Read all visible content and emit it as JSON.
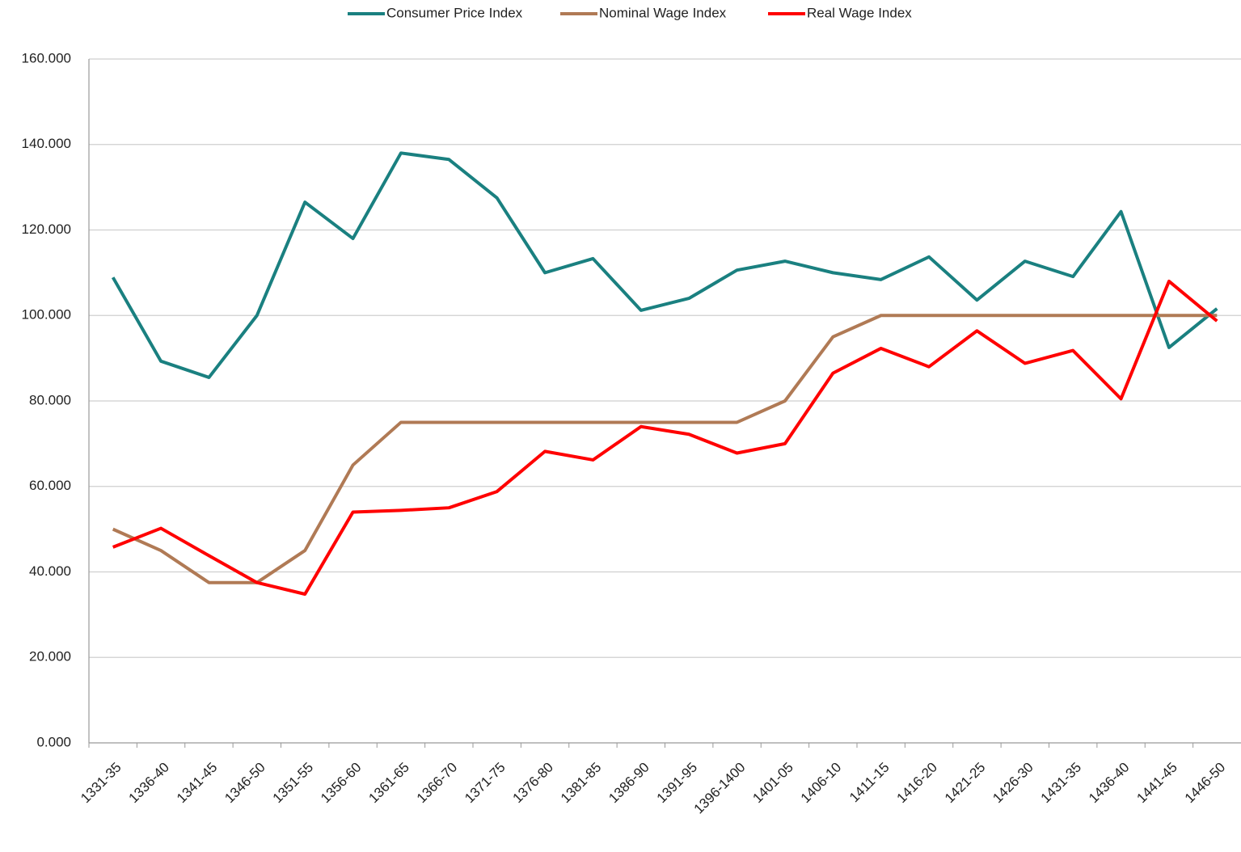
{
  "chart_data": {
    "type": "line",
    "categories": [
      "1331-35",
      "1336-40",
      "1341-45",
      "1346-50",
      "1351-55",
      "1356-60",
      "1361-65",
      "1366-70",
      "1371-75",
      "1376-80",
      "1381-85",
      "1386-90",
      "1391-95",
      "1396-1400",
      "1401-05",
      "1406-10",
      "1411-15",
      "1416-20",
      "1421-25",
      "1426-30",
      "1431-35",
      "1436-40",
      "1441-45",
      "1446-50"
    ],
    "series": [
      {
        "name": "Consumer Price Index",
        "color": "#1a8080",
        "values": [
          108.9,
          89.3,
          85.5,
          100,
          126.5,
          118,
          138,
          136.5,
          127.5,
          110,
          113.3,
          101.2,
          104,
          110.6,
          112.7,
          110,
          108.4,
          113.7,
          103.6,
          112.7,
          109.1,
          124.3,
          92.5,
          101.6
        ]
      },
      {
        "name": "Nominal Wage Index",
        "color": "#b07a55",
        "values": [
          50,
          45,
          37.5,
          37.5,
          45,
          65,
          75,
          75,
          75,
          75,
          75,
          75,
          75,
          75,
          80,
          95,
          100,
          100,
          100,
          100,
          100,
          100,
          100,
          100
        ]
      },
      {
        "name": "Real Wage Index",
        "color": "#ff0000",
        "values": [
          45.8,
          50.2,
          43.8,
          37.5,
          34.8,
          54,
          54.4,
          55,
          58.8,
          68.2,
          66.2,
          74,
          72.2,
          67.8,
          70,
          86.5,
          92.3,
          88,
          96.4,
          88.8,
          91.8,
          80.5,
          108,
          98.7
        ]
      }
    ],
    "ylim": [
      0,
      160
    ],
    "yticks": [
      {
        "value": 0,
        "label": "0.000"
      },
      {
        "value": 20,
        "label": "20.000"
      },
      {
        "value": 40,
        "label": "40.000"
      },
      {
        "value": 60,
        "label": "60.000"
      },
      {
        "value": 80,
        "label": "80.000"
      },
      {
        "value": 100,
        "label": "100.000"
      },
      {
        "value": 120,
        "label": "120.000"
      },
      {
        "value": 140,
        "label": "140.000"
      },
      {
        "value": 160,
        "label": "160.000"
      }
    ],
    "grid": true,
    "legend": "top"
  }
}
